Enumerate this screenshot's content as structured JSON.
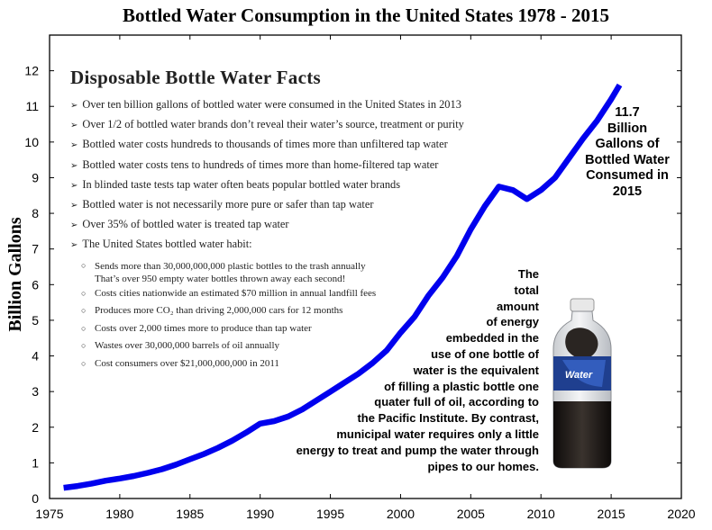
{
  "chart_data": {
    "type": "line",
    "title": "Bottled Water Consumption in the United States 1978 - 2015",
    "ylabel": "Billion Gallons",
    "xlabel": "",
    "xlim": [
      1975,
      2020
    ],
    "ylim": [
      0,
      13
    ],
    "x_ticks": [
      1975,
      1980,
      1985,
      1990,
      1995,
      2000,
      2005,
      2010,
      2015,
      2020
    ],
    "y_ticks": [
      0,
      1,
      2,
      3,
      4,
      5,
      6,
      7,
      8,
      9,
      10,
      11,
      12
    ],
    "series": [
      {
        "color": "#0000ee",
        "x": [
          1976,
          1977,
          1978,
          1979,
          1980,
          1981,
          1982,
          1983,
          1984,
          1985,
          1986,
          1987,
          1988,
          1989,
          1990,
          1991,
          1992,
          1993,
          1994,
          1995,
          1996,
          1997,
          1998,
          1999,
          2000,
          2001,
          2002,
          2003,
          2004,
          2005,
          2006,
          2007,
          2008,
          2009,
          2010,
          2011,
          2012,
          2013,
          2014,
          2015,
          2015.6
        ],
        "y": [
          0.3,
          0.35,
          0.42,
          0.5,
          0.56,
          0.63,
          0.72,
          0.82,
          0.95,
          1.1,
          1.25,
          1.42,
          1.62,
          1.85,
          2.1,
          2.17,
          2.3,
          2.5,
          2.75,
          3.0,
          3.25,
          3.5,
          3.8,
          4.15,
          4.65,
          5.1,
          5.7,
          6.2,
          6.8,
          7.55,
          8.2,
          8.75,
          8.65,
          8.4,
          8.65,
          9.0,
          9.55,
          10.1,
          10.6,
          11.2,
          11.6
        ]
      }
    ],
    "grid": false
  },
  "facts": {
    "heading": "Disposable Bottle Water Facts",
    "items": [
      "Over ten billion gallons of bottled water were consumed in the United States in 2013",
      "Over 1/2 of bottled water brands don’t reveal their water’s source, treatment or purity",
      "Bottled water costs hundreds to thousands of times more than unfiltered tap water",
      "Bottled water costs tens to hundreds of times more than home-filtered tap water",
      "In blinded taste tests tap water often beats popular bottled water brands",
      "Bottled water is not necessarily more pure or safer than tap water",
      "Over 35% of bottled water is treated tap water",
      "The United States bottled water habit:"
    ],
    "habit_items": [
      "Sends more than 30,000,000,000 plastic bottles to the trash annually\nThat’s over 950 empty water bottles thrown away each second!",
      "Costs cities nationwide an estimated $70 million in annual landfill fees",
      "Produces more CO₂ than driving 2,000,000 cars for 12 months",
      "Costs over 2,000 times more to produce than tap water",
      "Wastes over 30,000,000 barrels of oil annually",
      "Cost consumers over $21,000,000,000 in 2011"
    ]
  },
  "annotations": {
    "consumed_2015": "11.7\nBillion\nGallons of\nBottled Water\nConsumed in\n2015",
    "energy_note": "The\ntotal\namount\nof energy\nembedded in the\nuse of one bottle of\nwater is the equivalent\nof filling a plastic bottle one\nquater full of oil, according to\nthe Pacific Institute.  By contrast,\nmunicipal water requires only a little\nenergy to treat and pump the water through\npipes to our homes."
  },
  "bottle_label": "Water",
  "colors": {
    "line": "#0000ee",
    "bottle_label": "#1f3f8f",
    "oil": "#1a1614"
  }
}
